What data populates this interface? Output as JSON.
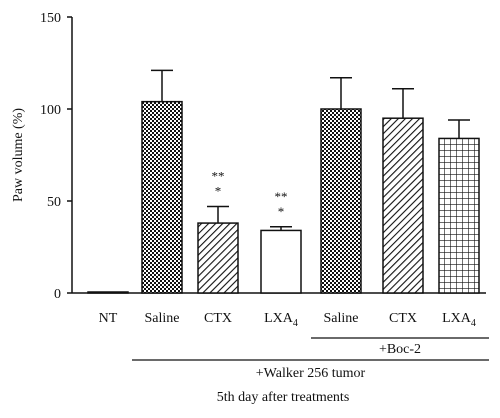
{
  "chart_data": {
    "type": "bar",
    "ylabel": "Paw volume (%)",
    "ylim": [
      0,
      150
    ],
    "yticks": [
      0,
      50,
      100,
      150
    ],
    "grid": false,
    "categories": [
      {
        "label": "NT",
        "sub": ""
      },
      {
        "label": "Saline",
        "sub": ""
      },
      {
        "label": "CTX",
        "sub": ""
      },
      {
        "label": "LXA",
        "sub": "4"
      },
      {
        "label": "Saline",
        "sub": ""
      },
      {
        "label": "CTX",
        "sub": ""
      },
      {
        "label": "LXA",
        "sub": "4"
      }
    ],
    "values": [
      0.5,
      104,
      38,
      34,
      100,
      95,
      84
    ],
    "errors": [
      0.3,
      17,
      9,
      2,
      17,
      16,
      10
    ],
    "patterns": [
      "none",
      "checker",
      "diag",
      "none",
      "checker",
      "diag",
      "grid"
    ],
    "significance": [
      "",
      "",
      "**\n*",
      "**\n*",
      "",
      "",
      ""
    ],
    "group_labels": [
      {
        "text": "+Boc-2",
        "from": 4,
        "to": 6
      },
      {
        "text": "+Walker 256 tumor",
        "from": 1,
        "to": 6
      }
    ],
    "footer": "5th day after treatments"
  }
}
